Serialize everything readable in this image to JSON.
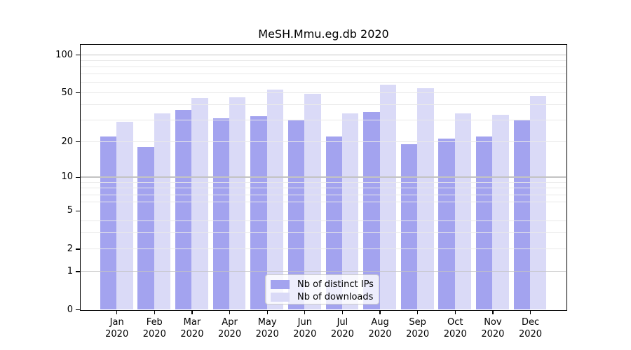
{
  "chart_data": {
    "type": "bar",
    "title": "MeSH.Mmu.eg.db 2020",
    "categories": [
      "Jan",
      "Feb",
      "Mar",
      "Apr",
      "May",
      "Jun",
      "Jul",
      "Aug",
      "Sep",
      "Oct",
      "Nov",
      "Dec"
    ],
    "category_year": "2020",
    "series": [
      {
        "name": "Nb of distinct IPs",
        "color": "#a3a3ef",
        "values": [
          22,
          18,
          36,
          31,
          32,
          30,
          22,
          35,
          19,
          21,
          22,
          30
        ]
      },
      {
        "name": "Nb of downloads",
        "color": "#dadaf7",
        "values": [
          29,
          34,
          45,
          46,
          53,
          49,
          34,
          58,
          54,
          34,
          33,
          47
        ]
      }
    ],
    "yscale": "log1p",
    "yticks": [
      0,
      1,
      2,
      5,
      10,
      20,
      50,
      100
    ],
    "ylim": [
      0,
      122
    ],
    "xlabel": "",
    "ylabel": "",
    "grid": {
      "major_values": [
        1,
        10,
        100
      ],
      "minor_values": [
        2,
        3,
        4,
        6,
        7,
        8,
        9,
        20,
        30,
        40,
        50,
        60,
        70,
        80,
        90
      ],
      "major_color": "#c3c3c3",
      "minor_color": "#e9e9e9",
      "drawn_on_top_of_bars": true
    },
    "legend": {
      "position": "lower center",
      "entries": [
        "Nb of distinct IPs",
        "Nb of downloads"
      ]
    }
  },
  "colors": {
    "background": "#ffffff",
    "axis": "#000000",
    "text": "#000000"
  }
}
